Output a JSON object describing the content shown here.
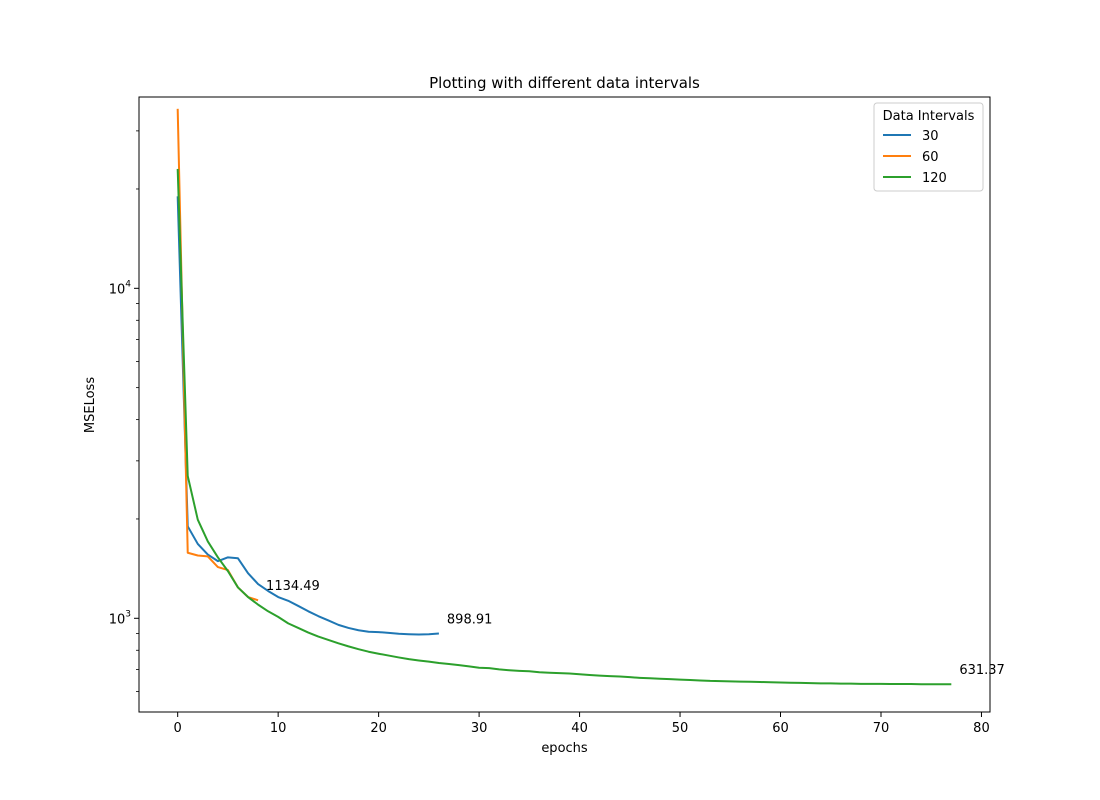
{
  "chart_data": {
    "type": "line",
    "title": "Plotting with different data intervals",
    "xlabel": "epochs",
    "ylabel": "MSELoss",
    "xlim": [
      -3.85,
      80.85
    ],
    "ylim": [
      520,
      38000
    ],
    "yscale": "log",
    "xticks": [
      0,
      10,
      20,
      30,
      40,
      50,
      60,
      70,
      80
    ],
    "yticks": [
      {
        "value": 1000,
        "base": "10",
        "exp": "3"
      },
      {
        "value": 10000,
        "base": "10",
        "exp": "4"
      }
    ],
    "grid": false,
    "legend": {
      "title": "Data Intervals",
      "placement": "top-right"
    },
    "series": [
      {
        "name": "30",
        "color": "#1f77b4",
        "x": [
          0,
          1,
          2,
          3,
          4,
          5,
          6,
          7,
          8,
          9,
          10,
          11,
          12,
          13,
          14,
          15,
          16,
          17,
          18,
          19,
          20,
          21,
          22,
          23,
          24,
          25,
          26
        ],
        "y": [
          19000,
          1900,
          1680,
          1560,
          1490,
          1530,
          1520,
          1370,
          1270,
          1210,
          1160,
          1130,
          1090,
          1050,
          1015,
          985,
          955,
          935,
          920,
          910,
          908,
          903,
          898,
          895,
          893,
          895,
          899
        ]
      },
      {
        "name": "60",
        "color": "#ff7f0e",
        "x": [
          0,
          1,
          2,
          3,
          4,
          5,
          6,
          7,
          8
        ],
        "y": [
          35000,
          1580,
          1550,
          1540,
          1430,
          1400,
          1240,
          1160,
          1134
        ]
      },
      {
        "name": "120",
        "color": "#2ca02c",
        "x": [
          0,
          1,
          2,
          3,
          4,
          5,
          6,
          7,
          8,
          9,
          10,
          11,
          12,
          13,
          14,
          15,
          16,
          17,
          18,
          19,
          20,
          21,
          22,
          23,
          24,
          25,
          26,
          27,
          28,
          29,
          30,
          31,
          32,
          33,
          34,
          35,
          36,
          37,
          38,
          39,
          40,
          41,
          42,
          43,
          44,
          45,
          46,
          47,
          48,
          49,
          50,
          51,
          52,
          53,
          54,
          55,
          56,
          57,
          58,
          59,
          60,
          61,
          62,
          63,
          64,
          65,
          66,
          67,
          68,
          69,
          70,
          71,
          72,
          73,
          74,
          75,
          76,
          77
        ],
        "y": [
          23000,
          2700,
          1990,
          1710,
          1530,
          1390,
          1240,
          1160,
          1100,
          1050,
          1010,
          965,
          935,
          905,
          880,
          860,
          840,
          822,
          806,
          792,
          781,
          771,
          761,
          752,
          745,
          739,
          732,
          727,
          721,
          715,
          708,
          706,
          700,
          696,
          693,
          691,
          686,
          684,
          682,
          680,
          677,
          673,
          670,
          668,
          666,
          663,
          660,
          658,
          656,
          654,
          652,
          650,
          648,
          646,
          645,
          644,
          643,
          642,
          641,
          640,
          639,
          638,
          637,
          636,
          635,
          635,
          634,
          634,
          633,
          633,
          633,
          632,
          632,
          632,
          631,
          631,
          631,
          631.37
        ]
      }
    ],
    "annotations": [
      {
        "text": "1134.49",
        "x": 8,
        "y": 1134.49
      },
      {
        "text": "898.91",
        "x": 26,
        "y": 898.91
      },
      {
        "text": "631.37",
        "x": 77,
        "y": 631.37
      }
    ]
  }
}
